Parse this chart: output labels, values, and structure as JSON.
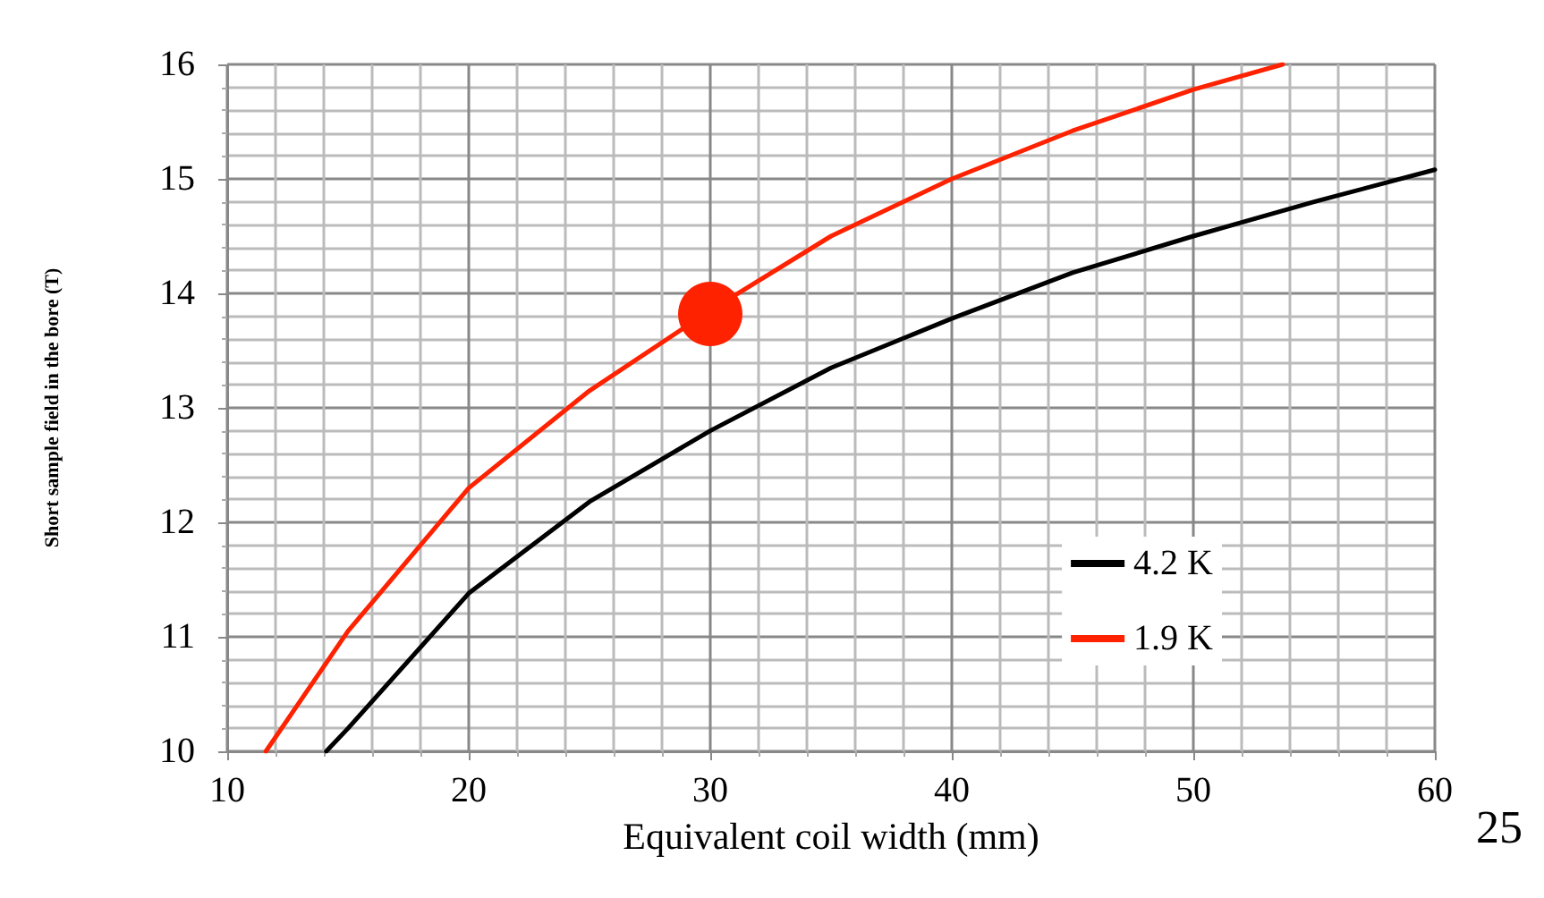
{
  "chart_data": {
    "type": "line",
    "xlabel": "Equivalent coil width (mm)",
    "ylabel": "Short sample field in the bore (T)",
    "xlim": [
      10,
      60
    ],
    "xticks": [
      10,
      20,
      30,
      40,
      50,
      60
    ],
    "ylim": [
      10,
      16
    ],
    "yticks": [
      10,
      11,
      12,
      13,
      14,
      15,
      16
    ],
    "grid": true,
    "legend": "right",
    "marker": "none",
    "line_style": "solid",
    "annotations": [
      "25"
    ],
    "series": [
      {
        "name": "4.2 K",
        "color": "#000000",
        "x": [
          14.1,
          15,
          20,
          25,
          30,
          35,
          40,
          45,
          50,
          55,
          60
        ],
        "values": [
          10,
          10.2,
          11.38,
          12.18,
          12.8,
          13.35,
          13.78,
          14.18,
          14.5,
          14.8,
          15.08
        ]
      },
      {
        "name": "1.9 K",
        "color": "#ff2200",
        "x": [
          11.6,
          15,
          20,
          25,
          30,
          35,
          40,
          45,
          50,
          53.7
        ],
        "values": [
          10,
          11.05,
          12.3,
          13.15,
          13.85,
          14.5,
          15.0,
          15.42,
          15.78,
          16
        ]
      },
      {
        "type": "scatter",
        "marker": "circle",
        "color": "#ff2200",
        "x": [
          30
        ],
        "values": [
          13.82
        ]
      }
    ]
  }
}
